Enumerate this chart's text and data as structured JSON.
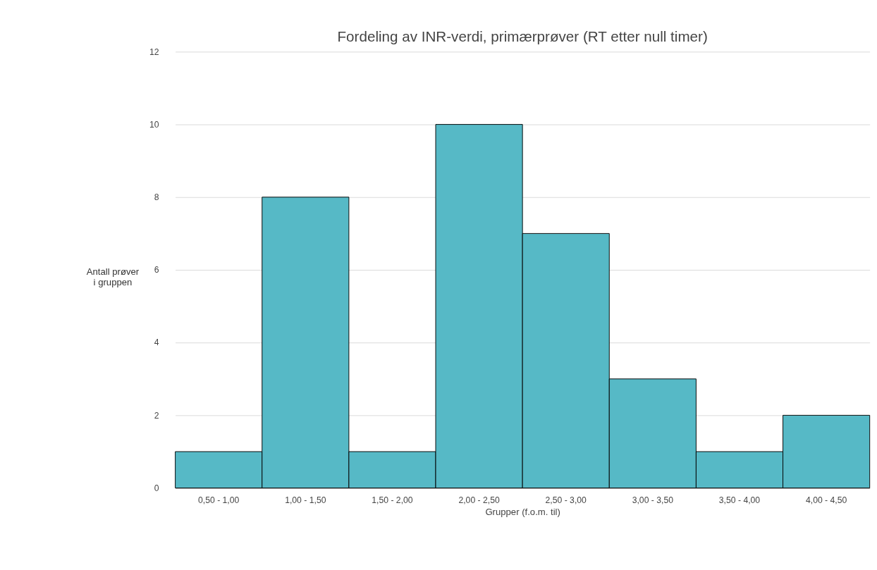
{
  "chart_data": {
    "type": "bar",
    "title": "Fordeling av INR-verdi, primærprøver (RT etter null timer)",
    "xlabel": "Grupper (f.o.m. til)",
    "ylabel": "Antall prøver\ni gruppen",
    "categories": [
      "0,50 - 1,00",
      "1,00 - 1,50",
      "1,50 - 2,00",
      "2,00 - 2,50",
      "2,50 - 3,00",
      "3,00 - 3,50",
      "3,50 - 4,00",
      "4,00 - 4,50"
    ],
    "values": [
      1,
      8,
      1,
      10,
      7,
      3,
      1,
      2
    ],
    "color": "#56b9c6",
    "ylim": [
      0,
      12
    ],
    "yticks": [
      0,
      2,
      4,
      6,
      8,
      10,
      12
    ],
    "grid": "y"
  }
}
